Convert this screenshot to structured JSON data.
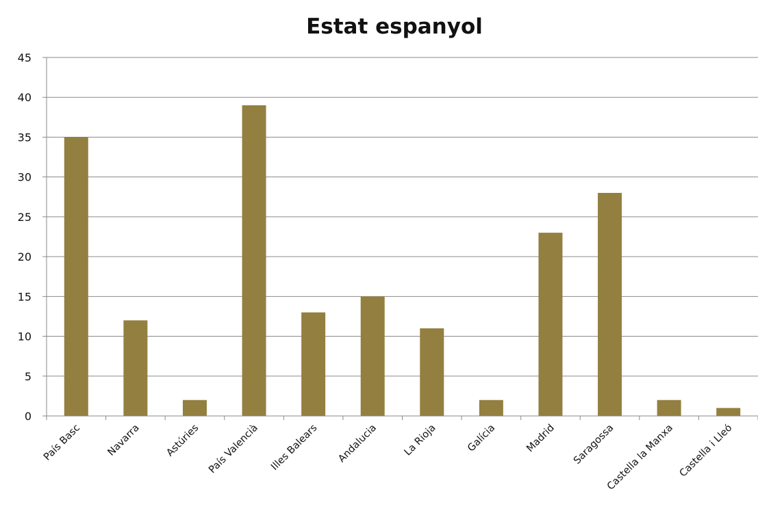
{
  "chart_data": {
    "type": "bar",
    "title": "Estat espanyol",
    "xlabel": "",
    "ylabel": "",
    "categories": [
      "País Basc",
      "Navarra",
      "Astúries",
      "País Valencià",
      "Illes Balears",
      "Andalucia",
      "La Rioja",
      "Galícia",
      "Madrid",
      "Saragossa",
      "Castella la Manxa",
      "Castella i Lleó"
    ],
    "values": [
      35,
      12,
      2,
      39,
      13,
      15,
      11,
      2,
      23,
      28,
      2,
      1
    ],
    "ylim": [
      0,
      45
    ],
    "yticks": [
      0,
      5,
      10,
      15,
      20,
      25,
      30,
      35,
      40,
      45
    ],
    "grid": true,
    "legend": "none",
    "colors": {
      "bar": "#937f40",
      "grid": "#8a8a8a",
      "axis": "#8a8a8a",
      "text": "#111111"
    }
  }
}
